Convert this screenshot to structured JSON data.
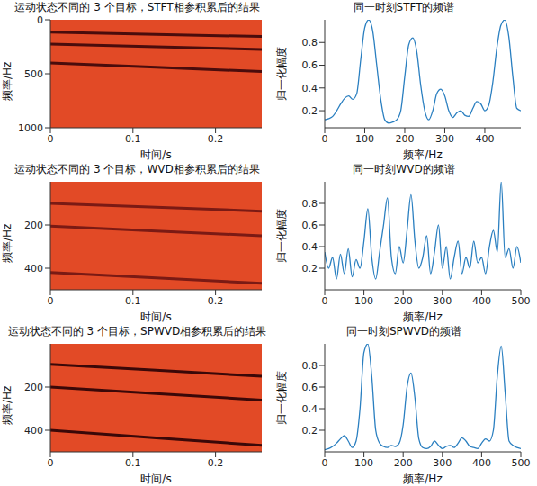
{
  "chart_data": [
    {
      "type": "line",
      "title": "运动状态不同的 3 个目标，STFT相参积累后的结果",
      "x_label": "时间/s",
      "y_label": "频率/Hz",
      "color": "#e24a26",
      "xlim": [
        0,
        0.256
      ],
      "xticks": [
        0,
        0.1,
        0.2
      ],
      "ylim": [
        1000,
        0
      ],
      "yticks": [
        0,
        500,
        1000
      ],
      "x": [
        0,
        0.128,
        0.256
      ],
      "series": [
        {
          "color": "#4a0c0c",
          "values": [
            115,
            135,
            155
          ]
        },
        {
          "color": "#4a0c0c",
          "values": [
            225,
            250,
            275
          ]
        },
        {
          "color": "#4a0c0c",
          "values": [
            400,
            440,
            480
          ]
        }
      ]
    },
    {
      "type": "line",
      "title": "同一时刻STFT的频谱",
      "x_label": "频率/Hz",
      "y_label": "归一化幅度",
      "color": "#2a7fc0",
      "xlim": [
        0,
        490
      ],
      "xticks": [
        0,
        100,
        200,
        300,
        400
      ],
      "ylim": [
        0.05,
        1.0
      ],
      "yticks": [
        0.2,
        0.4,
        0.6,
        0.8
      ],
      "x": [
        0,
        10,
        20,
        30,
        40,
        50,
        60,
        70,
        80,
        90,
        100,
        110,
        120,
        130,
        140,
        150,
        160,
        170,
        180,
        190,
        200,
        210,
        220,
        230,
        240,
        250,
        260,
        270,
        280,
        290,
        300,
        310,
        320,
        330,
        340,
        350,
        360,
        370,
        380,
        390,
        400,
        410,
        420,
        430,
        440,
        450,
        460,
        470,
        480,
        490
      ],
      "values": [
        0.12,
        0.13,
        0.15,
        0.2,
        0.26,
        0.31,
        0.33,
        0.3,
        0.35,
        0.65,
        0.93,
        1.0,
        0.9,
        0.6,
        0.3,
        0.12,
        0.09,
        0.1,
        0.12,
        0.2,
        0.5,
        0.78,
        0.84,
        0.72,
        0.42,
        0.2,
        0.12,
        0.2,
        0.35,
        0.39,
        0.33,
        0.2,
        0.14,
        0.18,
        0.2,
        0.16,
        0.15,
        0.22,
        0.28,
        0.26,
        0.2,
        0.25,
        0.45,
        0.75,
        0.95,
        1.0,
        0.85,
        0.5,
        0.22,
        0.2
      ]
    },
    {
      "type": "line",
      "title": "运动状态不同的 3 个目标，WVD相参积累后的结果",
      "x_label": "时间/s",
      "y_label": "频率/Hz",
      "color": "#e24a26",
      "xlim": [
        0,
        0.256
      ],
      "xticks": [
        0,
        0.1,
        0.2
      ],
      "ylim": [
        500,
        0
      ],
      "yticks": [
        200,
        400
      ],
      "x": [
        0,
        0.128,
        0.256
      ],
      "series": [
        {
          "color": "#7a1a14",
          "values": [
            100,
            118,
            136
          ]
        },
        {
          "color": "#7a1a14",
          "values": [
            205,
            228,
            250
          ]
        },
        {
          "color": "#7a1a14",
          "values": [
            420,
            445,
            470
          ]
        }
      ]
    },
    {
      "type": "line",
      "title": "同一时刻WVD的频谱",
      "x_label": "频率/Hz",
      "y_label": "归一化幅度",
      "color": "#2a7fc0",
      "xlim": [
        0,
        500
      ],
      "xticks": [
        0,
        100,
        200,
        300,
        400,
        500
      ],
      "ylim": [
        0,
        1
      ],
      "yticks": [
        0.2,
        0.4,
        0.6,
        0.8
      ],
      "x": [
        0,
        10,
        20,
        30,
        40,
        50,
        60,
        70,
        80,
        90,
        100,
        110,
        120,
        130,
        140,
        150,
        160,
        170,
        180,
        190,
        200,
        210,
        220,
        230,
        240,
        250,
        260,
        270,
        280,
        290,
        300,
        310,
        320,
        330,
        340,
        350,
        360,
        370,
        380,
        390,
        400,
        410,
        420,
        430,
        440,
        450,
        460,
        470,
        480,
        490,
        500
      ],
      "values": [
        0.35,
        0.2,
        0.3,
        0.1,
        0.33,
        0.15,
        0.38,
        0.12,
        0.28,
        0.2,
        0.45,
        0.75,
        0.3,
        0.1,
        0.35,
        0.6,
        0.85,
        0.3,
        0.15,
        0.4,
        0.25,
        0.55,
        0.88,
        0.45,
        0.2,
        0.3,
        0.5,
        0.15,
        0.35,
        0.6,
        0.2,
        0.4,
        0.1,
        0.3,
        0.45,
        0.15,
        0.3,
        0.2,
        0.45,
        0.25,
        0.3,
        0.15,
        0.4,
        0.55,
        0.35,
        1.0,
        0.3,
        0.38,
        0.2,
        0.4,
        0.25
      ]
    },
    {
      "type": "line",
      "title": "运动状态不同的 3 个目标，SPWVD相参积累后的结果",
      "x_label": "时间/s",
      "y_label": "频率/Hz",
      "color": "#e24a26",
      "xlim": [
        0,
        0.256
      ],
      "xticks": [
        0,
        0.1,
        0.2
      ],
      "ylim": [
        500,
        0
      ],
      "yticks": [
        200,
        400
      ],
      "x": [
        0,
        0.128,
        0.256
      ],
      "series": [
        {
          "color": "#3a0808",
          "values": [
            95,
            122,
            150
          ]
        },
        {
          "color": "#3a0808",
          "values": [
            200,
            230,
            260
          ]
        },
        {
          "color": "#3a0808",
          "values": [
            400,
            435,
            470
          ]
        }
      ]
    },
    {
      "type": "line",
      "title": "同一时刻SPWVD的频谱",
      "x_label": "频率/Hz",
      "y_label": "归一化幅度",
      "color": "#2a7fc0",
      "xlim": [
        0,
        500
      ],
      "xticks": [
        0,
        100,
        200,
        300,
        400,
        500
      ],
      "ylim": [
        0,
        1
      ],
      "yticks": [
        0.2,
        0.4,
        0.6,
        0.8
      ],
      "x": [
        0,
        10,
        20,
        30,
        40,
        50,
        60,
        70,
        80,
        90,
        100,
        110,
        120,
        130,
        140,
        150,
        160,
        170,
        180,
        190,
        200,
        210,
        220,
        230,
        240,
        250,
        260,
        270,
        280,
        290,
        300,
        310,
        320,
        330,
        340,
        350,
        360,
        370,
        380,
        390,
        400,
        410,
        420,
        430,
        440,
        450,
        460,
        470,
        480,
        490,
        500
      ],
      "values": [
        0.02,
        0.03,
        0.05,
        0.08,
        0.12,
        0.15,
        0.1,
        0.04,
        0.1,
        0.4,
        0.92,
        1.0,
        0.7,
        0.2,
        0.08,
        0.05,
        0.04,
        0.06,
        0.05,
        0.08,
        0.25,
        0.6,
        0.73,
        0.5,
        0.12,
        0.04,
        0.03,
        0.05,
        0.1,
        0.06,
        0.03,
        0.05,
        0.06,
        0.04,
        0.08,
        0.13,
        0.1,
        0.05,
        0.04,
        0.03,
        0.08,
        0.12,
        0.1,
        0.2,
        0.7,
        0.98,
        0.55,
        0.1,
        0.06,
        0.04,
        0.03
      ]
    }
  ]
}
